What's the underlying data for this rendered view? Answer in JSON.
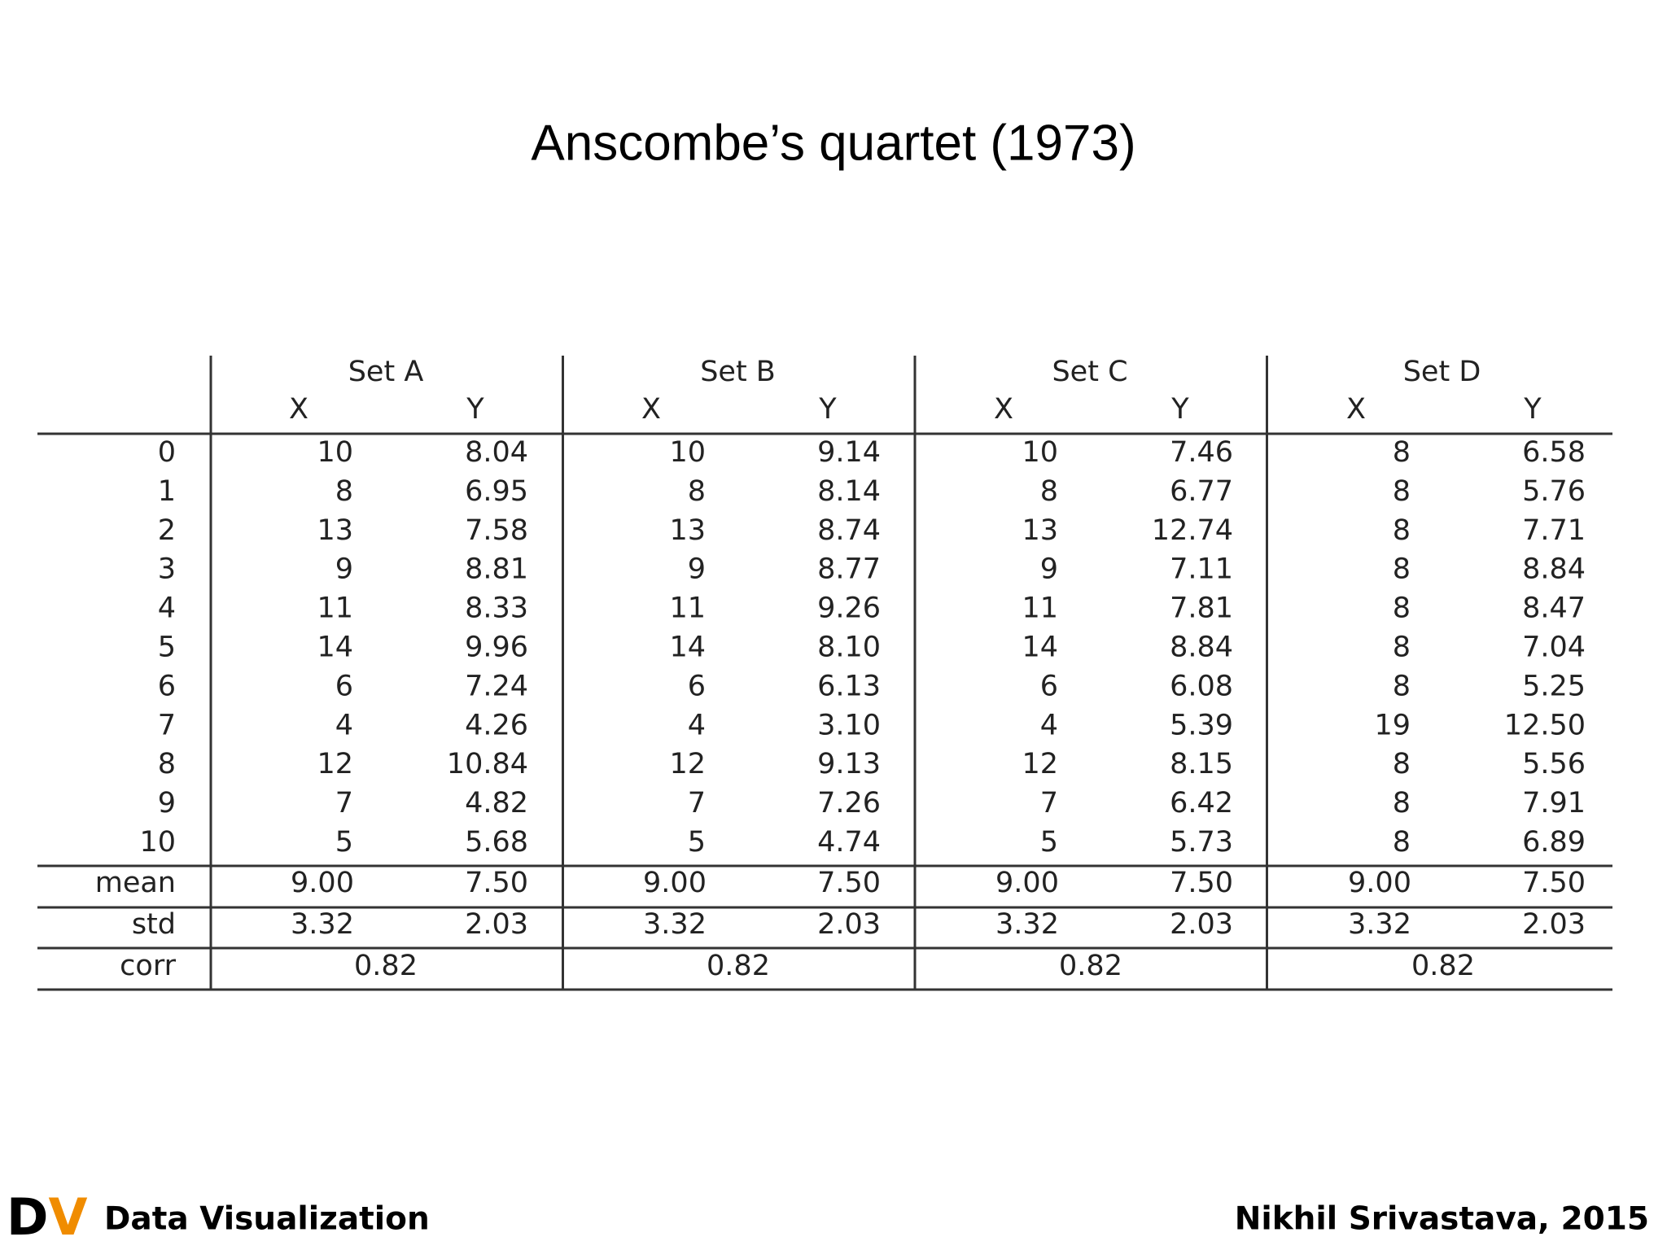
{
  "title": "Anscombe’s quartet (1973)",
  "table": {
    "groups": [
      "Set A",
      "Set B",
      "Set C",
      "Set D"
    ],
    "subheaders": [
      "X",
      "Y",
      "X",
      "Y",
      "X",
      "Y",
      "X",
      "Y"
    ],
    "rows": [
      {
        "label": "0",
        "cells": [
          "10",
          "8.04",
          "10",
          "9.14",
          "10",
          "7.46",
          "8",
          "6.58"
        ]
      },
      {
        "label": "1",
        "cells": [
          "8",
          "6.95",
          "8",
          "8.14",
          "8",
          "6.77",
          "8",
          "5.76"
        ]
      },
      {
        "label": "2",
        "cells": [
          "13",
          "7.58",
          "13",
          "8.74",
          "13",
          "12.74",
          "8",
          "7.71"
        ]
      },
      {
        "label": "3",
        "cells": [
          "9",
          "8.81",
          "9",
          "8.77",
          "9",
          "7.11",
          "8",
          "8.84"
        ]
      },
      {
        "label": "4",
        "cells": [
          "11",
          "8.33",
          "11",
          "9.26",
          "11",
          "7.81",
          "8",
          "8.47"
        ]
      },
      {
        "label": "5",
        "cells": [
          "14",
          "9.96",
          "14",
          "8.10",
          "14",
          "8.84",
          "8",
          "7.04"
        ]
      },
      {
        "label": "6",
        "cells": [
          "6",
          "7.24",
          "6",
          "6.13",
          "6",
          "6.08",
          "8",
          "5.25"
        ]
      },
      {
        "label": "7",
        "cells": [
          "4",
          "4.26",
          "4",
          "3.10",
          "4",
          "5.39",
          "19",
          "12.50"
        ]
      },
      {
        "label": "8",
        "cells": [
          "12",
          "10.84",
          "12",
          "9.13",
          "12",
          "8.15",
          "8",
          "5.56"
        ]
      },
      {
        "label": "9",
        "cells": [
          "7",
          "4.82",
          "7",
          "7.26",
          "7",
          "6.42",
          "8",
          "7.91"
        ]
      },
      {
        "label": "10",
        "cells": [
          "5",
          "5.68",
          "5",
          "4.74",
          "5",
          "5.73",
          "8",
          "6.89"
        ]
      }
    ],
    "summary": [
      {
        "label": "mean",
        "cells": [
          "9.00",
          "7.50",
          "9.00",
          "7.50",
          "9.00",
          "7.50",
          "9.00",
          "7.50"
        ]
      },
      {
        "label": "std",
        "cells": [
          "3.32",
          "2.03",
          "3.32",
          "2.03",
          "3.32",
          "2.03",
          "3.32",
          "2.03"
        ]
      },
      {
        "label": "corr",
        "cells": [
          "0.82",
          "0.82",
          "0.82",
          "0.82"
        ]
      }
    ]
  },
  "footer": {
    "logo": [
      "D",
      "V"
    ],
    "left": "Data Visualization",
    "right": "Nikhil Srivastava, 2015"
  }
}
